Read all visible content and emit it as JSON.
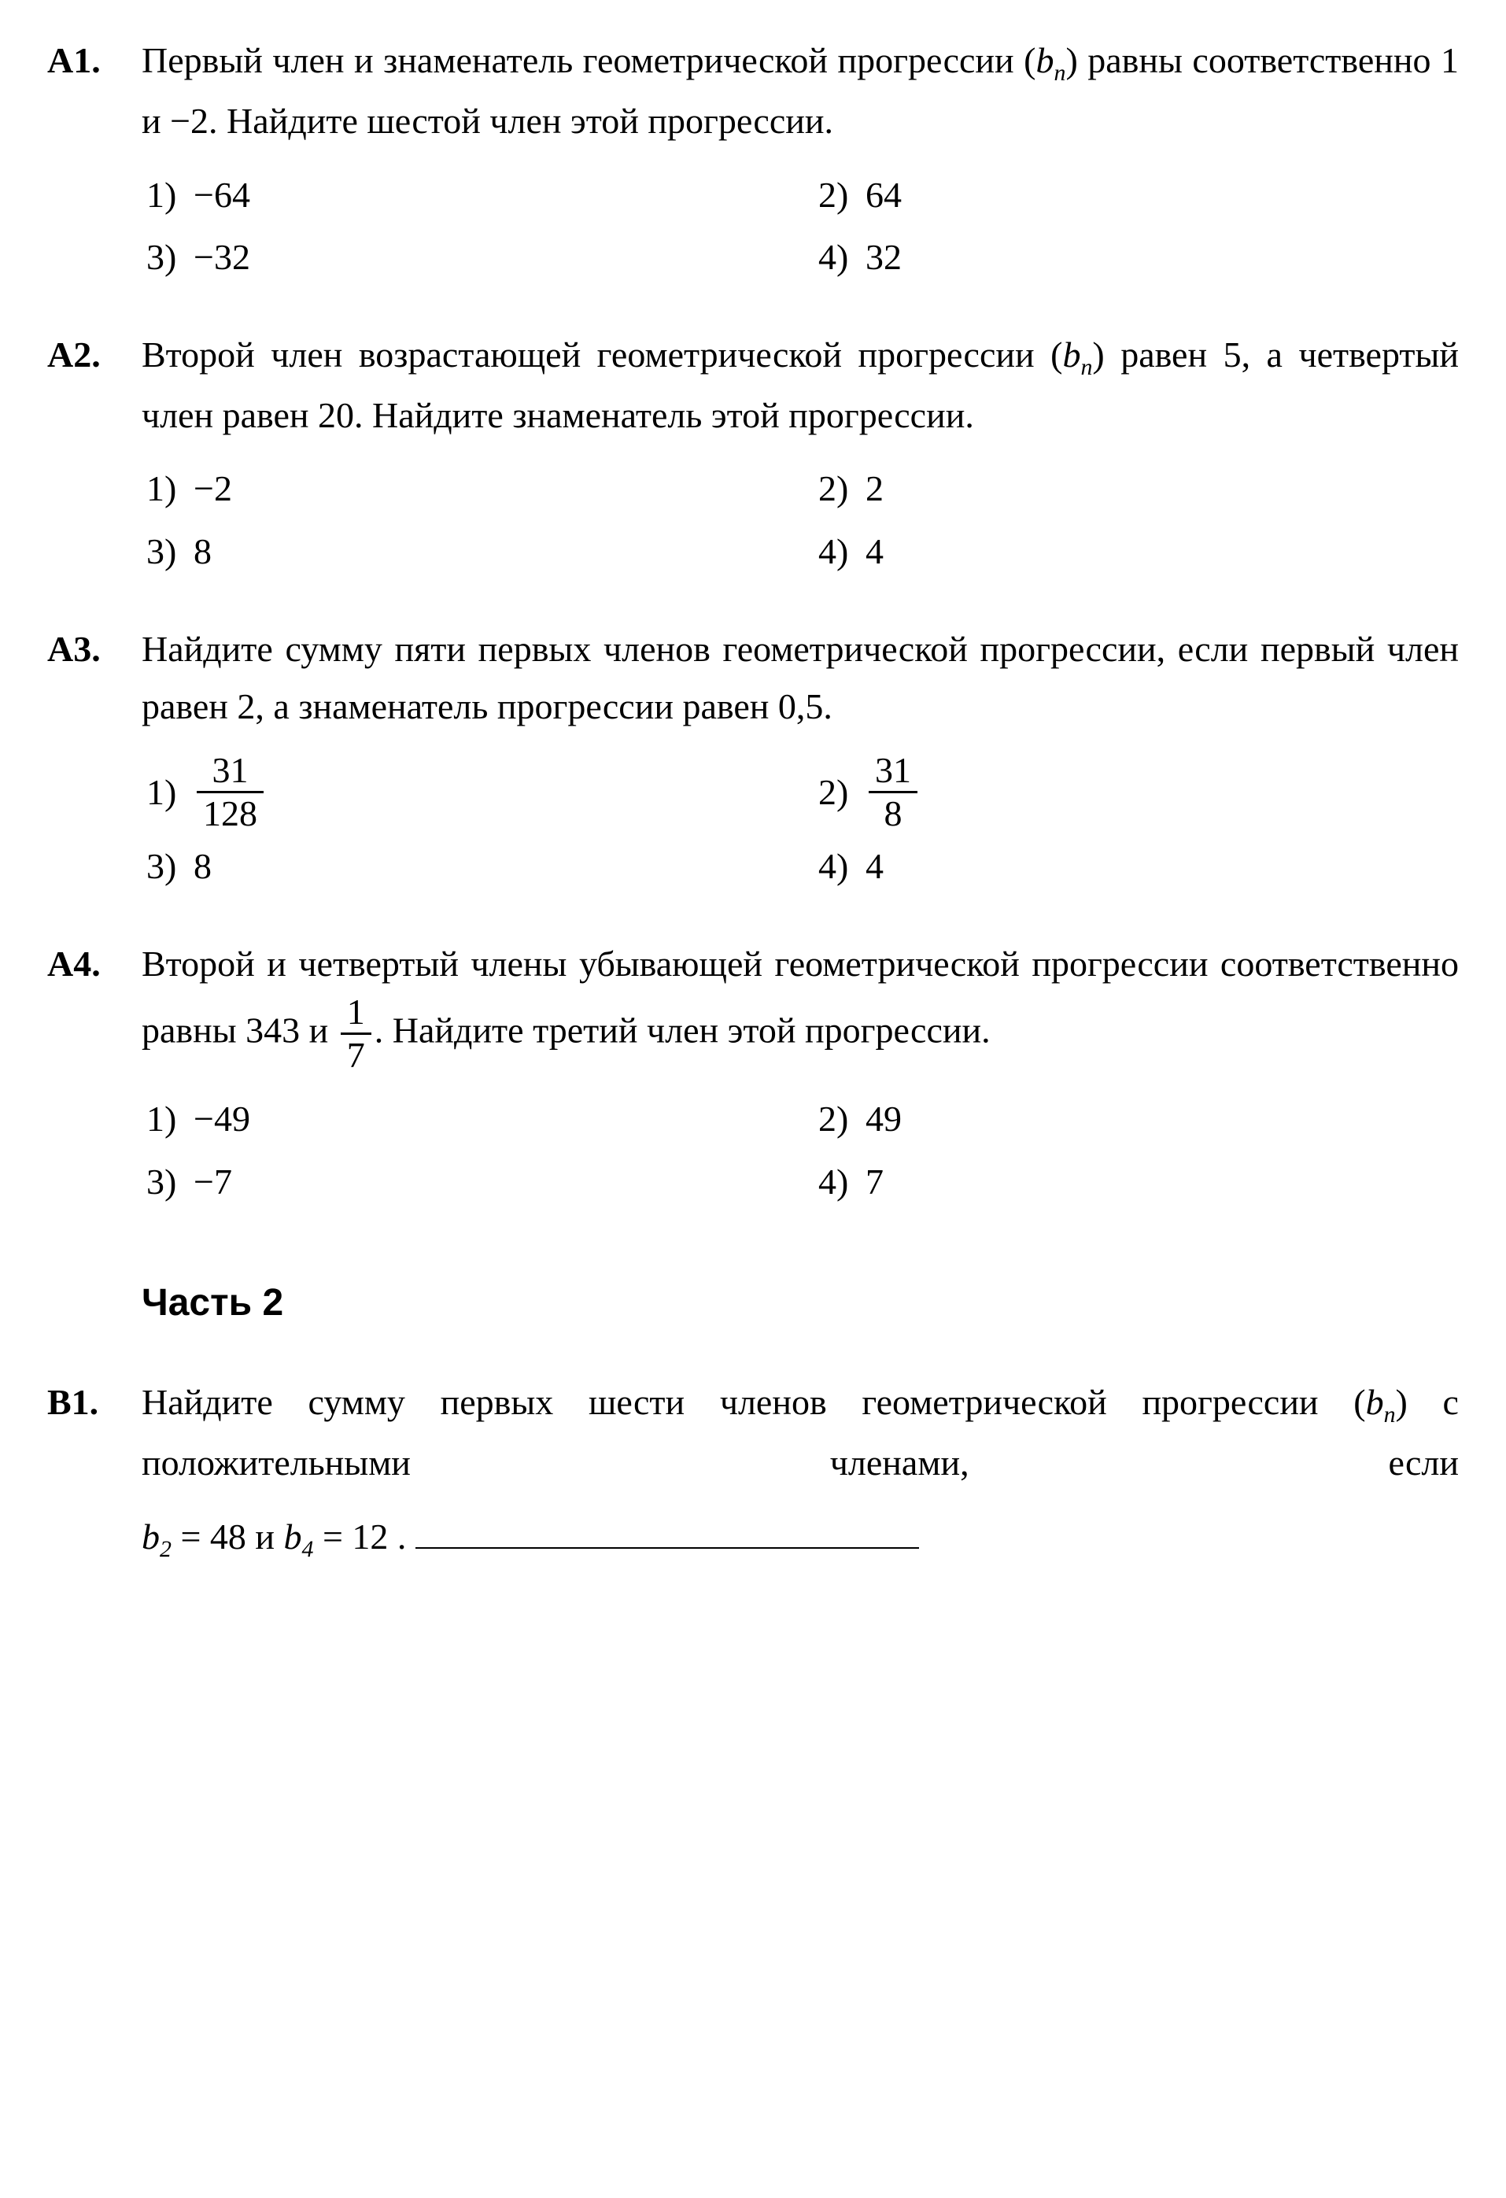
{
  "colors": {
    "text": "#000000",
    "background": "#ffffff"
  },
  "typography": {
    "font_family": "Times New Roman",
    "base_fontsize_pt": 22,
    "heading_font_family": "Arial"
  },
  "a1": {
    "label": "А1.",
    "text_pre": "Первый член и знаменатель геометрической прогрессии (",
    "seq_var": "b",
    "seq_sub": "n",
    "text_post": ") равны соответственно 1 и −2. Найдите шестой член этой прогрессии.",
    "opts": {
      "n1": "1)",
      "v1": "−64",
      "n2": "2)",
      "v2": "64",
      "n3": "3)",
      "v3": "−32",
      "n4": "4)",
      "v4": "32"
    }
  },
  "a2": {
    "label": "А2.",
    "text_pre": "Второй член возрастающей геометрической прогрессии (",
    "seq_var": "b",
    "seq_sub": "n",
    "text_post": ") равен 5, а четвертый член равен 20. Найдите знаменатель этой прогрессии.",
    "opts": {
      "n1": "1)",
      "v1": "−2",
      "n2": "2)",
      "v2": "2",
      "n3": "3)",
      "v3": "8",
      "n4": "4)",
      "v4": "4"
    }
  },
  "a3": {
    "label": "А3.",
    "text": "Найдите сумму пяти первых членов геометрической прогрессии, если первый член равен 2, а знаменатель прогрессии равен 0,5.",
    "opt1": {
      "num": "1)",
      "frac_num": "31",
      "frac_den": "128"
    },
    "opt2": {
      "num": "2)",
      "frac_num": "31",
      "frac_den": "8"
    },
    "opt3": {
      "num": "3)",
      "val": "8"
    },
    "opt4": {
      "num": "4)",
      "val": "4"
    }
  },
  "a4": {
    "label": "А4.",
    "text_pre": "Второй и четвертый члены убывающей геометрической прогрессии соответственно равны 343 и ",
    "frac_num": "1",
    "frac_den": "7",
    "text_post": ". Найдите третий член этой прогрессии.",
    "opts": {
      "n1": "1)",
      "v1": "−49",
      "n2": "2)",
      "v2": "49",
      "n3": "3)",
      "v3": "−7",
      "n4": "4)",
      "v4": "7"
    }
  },
  "part2_title": "Часть 2",
  "b1": {
    "label": "В1.",
    "text_pre": "Найдите сумму первых шести членов геометрической прогрессии (",
    "seq_var": "b",
    "seq_sub": "n",
    "text_mid": ") с положительными членами, если ",
    "eq1_var": "b",
    "eq1_sub": "2",
    "eq1_rest": " = 48",
    "and": "  и  ",
    "eq2_var": "b",
    "eq2_sub": "4",
    "eq2_rest": " = 12 ."
  }
}
